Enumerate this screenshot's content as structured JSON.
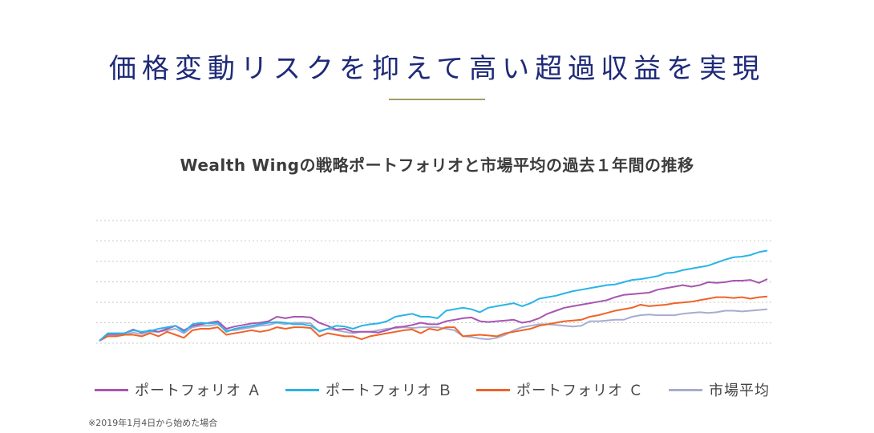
{
  "header": {
    "title": "価格変動リスクを抑えて高い超過収益を実現",
    "accent_color": "#a59a63",
    "title_color": "#1e2a78"
  },
  "chart_data": {
    "type": "line",
    "title": "Wealth Wingの戦略ポートフォリオと市場平均の過去１年間の推移",
    "grid": true,
    "grid_style": "dotted",
    "legend_position": "bottom",
    "footnote": "※2019年1月4日から始めた場合",
    "ylim": [
      0,
      8
    ],
    "x_count": 80,
    "series": [
      {
        "name": "ポートフォリオ A",
        "label": "ポートフォリオ Ａ",
        "color": "#a855b0",
        "values": [
          0,
          0.45,
          0.45,
          0.5,
          0.75,
          0.55,
          0.7,
          0.6,
          0.8,
          1.0,
          0.7,
          1.0,
          1.1,
          1.2,
          1.3,
          0.8,
          0.95,
          1.05,
          1.15,
          1.2,
          1.3,
          1.6,
          1.5,
          1.6,
          1.6,
          1.55,
          1.2,
          1.0,
          0.75,
          0.8,
          0.6,
          0.6,
          0.6,
          0.55,
          0.7,
          0.9,
          0.95,
          1.05,
          1.2,
          1.1,
          1.1,
          1.3,
          1.4,
          1.5,
          1.55,
          1.3,
          1.25,
          1.3,
          1.35,
          1.4,
          1.2,
          1.3,
          1.5,
          1.8,
          2.0,
          2.2,
          2.3,
          2.4,
          2.5,
          2.6,
          2.7,
          2.9,
          3.05,
          3.1,
          3.15,
          3.2,
          3.4,
          3.5,
          3.6,
          3.7,
          3.6,
          3.7,
          3.9,
          3.85,
          3.9,
          4.0,
          4.0,
          4.05,
          3.85,
          4.1
        ]
      },
      {
        "name": "ポートフォリオ B",
        "label": "ポートフォリオ Ｂ",
        "color": "#29b4e6",
        "values": [
          0,
          0.5,
          0.5,
          0.5,
          0.7,
          0.6,
          0.65,
          0.8,
          0.9,
          1.0,
          0.6,
          1.1,
          1.2,
          1.15,
          1.2,
          0.6,
          0.8,
          0.9,
          1.0,
          1.1,
          1.2,
          1.25,
          1.2,
          1.1,
          1.1,
          1.0,
          0.65,
          0.8,
          1.0,
          0.95,
          0.8,
          1.0,
          1.1,
          1.15,
          1.3,
          1.6,
          1.7,
          1.8,
          1.6,
          1.6,
          1.5,
          2.0,
          2.1,
          2.2,
          2.1,
          1.9,
          2.2,
          2.3,
          2.4,
          2.5,
          2.3,
          2.5,
          2.8,
          2.9,
          3.0,
          3.15,
          3.3,
          3.4,
          3.5,
          3.6,
          3.7,
          3.75,
          3.9,
          4.05,
          4.1,
          4.2,
          4.3,
          4.5,
          4.55,
          4.7,
          4.8,
          4.9,
          5.0,
          5.2,
          5.4,
          5.55,
          5.6,
          5.7,
          5.9,
          6.0
        ]
      },
      {
        "name": "ポートフォリオ C",
        "label": "ポートフォリオ Ｃ",
        "color": "#ef6327",
        "values": [
          0,
          0.3,
          0.3,
          0.4,
          0.4,
          0.3,
          0.5,
          0.3,
          0.6,
          0.4,
          0.2,
          0.7,
          0.8,
          0.8,
          0.9,
          0.4,
          0.5,
          0.6,
          0.7,
          0.6,
          0.7,
          0.9,
          0.8,
          0.9,
          0.9,
          0.85,
          0.3,
          0.5,
          0.4,
          0.3,
          0.3,
          0.1,
          0.3,
          0.4,
          0.5,
          0.6,
          0.7,
          0.75,
          0.5,
          0.8,
          0.7,
          0.9,
          0.9,
          0.3,
          0.35,
          0.4,
          0.35,
          0.3,
          0.5,
          0.6,
          0.7,
          0.8,
          1.0,
          1.1,
          1.2,
          1.3,
          1.35,
          1.4,
          1.6,
          1.7,
          1.85,
          2.0,
          2.1,
          2.2,
          2.4,
          2.3,
          2.35,
          2.4,
          2.5,
          2.55,
          2.6,
          2.7,
          2.8,
          2.9,
          2.9,
          2.85,
          2.9,
          2.8,
          2.9,
          2.95
        ]
      },
      {
        "name": "市場平均",
        "label": "市場平均",
        "color": "#a7acd0",
        "values": [
          0,
          0.35,
          0.35,
          0.4,
          0.55,
          0.45,
          0.6,
          0.6,
          0.7,
          0.8,
          0.5,
          0.9,
          1.0,
          1.0,
          1.1,
          0.7,
          0.7,
          0.8,
          0.9,
          1.0,
          1.05,
          1.2,
          1.1,
          1.2,
          1.2,
          1.15,
          0.6,
          0.8,
          0.7,
          0.6,
          0.5,
          0.6,
          0.6,
          0.7,
          0.8,
          0.85,
          0.9,
          0.85,
          0.9,
          0.9,
          0.9,
          0.8,
          0.7,
          0.3,
          0.25,
          0.15,
          0.1,
          0.2,
          0.4,
          0.7,
          0.9,
          1.0,
          1.1,
          1.1,
          1.05,
          1.0,
          0.95,
          1.0,
          1.3,
          1.3,
          1.35,
          1.4,
          1.4,
          1.6,
          1.7,
          1.75,
          1.7,
          1.7,
          1.7,
          1.8,
          1.85,
          1.9,
          1.85,
          1.9,
          2.0,
          2.0,
          1.95,
          2.0,
          2.05,
          2.1
        ]
      }
    ]
  }
}
